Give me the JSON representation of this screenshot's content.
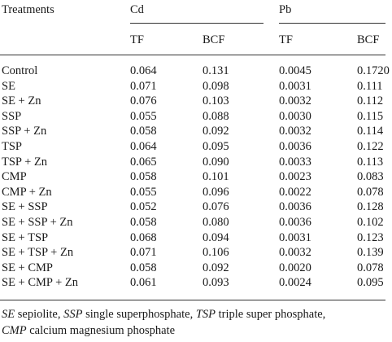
{
  "table": {
    "header": {
      "treatments": "Treatments",
      "groups": [
        {
          "name": "Cd",
          "cols": [
            "TF",
            "BCF"
          ]
        },
        {
          "name": "Pb",
          "cols": [
            "TF",
            "BCF"
          ]
        }
      ]
    },
    "rows": [
      {
        "treatment": "Control",
        "cd_tf": "0.064",
        "cd_bcf": "0.131",
        "pb_tf": "0.0045",
        "pb_bcf": "0.1720"
      },
      {
        "treatment": "SE",
        "cd_tf": "0.071",
        "cd_bcf": "0.098",
        "pb_tf": "0.0031",
        "pb_bcf": "0.111"
      },
      {
        "treatment": "SE + Zn",
        "cd_tf": "0.076",
        "cd_bcf": "0.103",
        "pb_tf": "0.0032",
        "pb_bcf": "0.112"
      },
      {
        "treatment": "SSP",
        "cd_tf": "0.055",
        "cd_bcf": "0.088",
        "pb_tf": "0.0030",
        "pb_bcf": "0.115"
      },
      {
        "treatment": "SSP + Zn",
        "cd_tf": "0.058",
        "cd_bcf": "0.092",
        "pb_tf": "0.0032",
        "pb_bcf": "0.114"
      },
      {
        "treatment": "TSP",
        "cd_tf": "0.064",
        "cd_bcf": "0.095",
        "pb_tf": "0.0036",
        "pb_bcf": "0.122"
      },
      {
        "treatment": "TSP + Zn",
        "cd_tf": "0.065",
        "cd_bcf": "0.090",
        "pb_tf": "0.0033",
        "pb_bcf": "0.113"
      },
      {
        "treatment": "CMP",
        "cd_tf": "0.058",
        "cd_bcf": "0.101",
        "pb_tf": "0.0023",
        "pb_bcf": "0.083"
      },
      {
        "treatment": "CMP + Zn",
        "cd_tf": "0.055",
        "cd_bcf": "0.096",
        "pb_tf": "0.0022",
        "pb_bcf": "0.078"
      },
      {
        "treatment": "SE + SSP",
        "cd_tf": "0.052",
        "cd_bcf": "0.076",
        "pb_tf": "0.0036",
        "pb_bcf": "0.128"
      },
      {
        "treatment": "SE + SSP + Zn",
        "cd_tf": "0.058",
        "cd_bcf": "0.080",
        "pb_tf": "0.0036",
        "pb_bcf": "0.102"
      },
      {
        "treatment": "SE + TSP",
        "cd_tf": "0.068",
        "cd_bcf": "0.094",
        "pb_tf": "0.0031",
        "pb_bcf": "0.123"
      },
      {
        "treatment": "SE + TSP + Zn",
        "cd_tf": "0.071",
        "cd_bcf": "0.106",
        "pb_tf": "0.0032",
        "pb_bcf": "0.139"
      },
      {
        "treatment": "SE + CMP",
        "cd_tf": "0.058",
        "cd_bcf": "0.092",
        "pb_tf": "0.0020",
        "pb_bcf": "0.078"
      },
      {
        "treatment": "SE + CMP + Zn",
        "cd_tf": "0.061",
        "cd_bcf": "0.093",
        "pb_tf": "0.0024",
        "pb_bcf": "0.095"
      }
    ]
  },
  "footnote": {
    "line1": [
      {
        "abbr": "SE",
        "text": " sepiolite, "
      },
      {
        "abbr": "SSP",
        "text": " single superphosphate, "
      },
      {
        "abbr": "TSP",
        "text": " triple super phosphate,"
      }
    ],
    "line2": [
      {
        "abbr": "CMP",
        "text": " calcium magnesium phosphate"
      }
    ]
  }
}
